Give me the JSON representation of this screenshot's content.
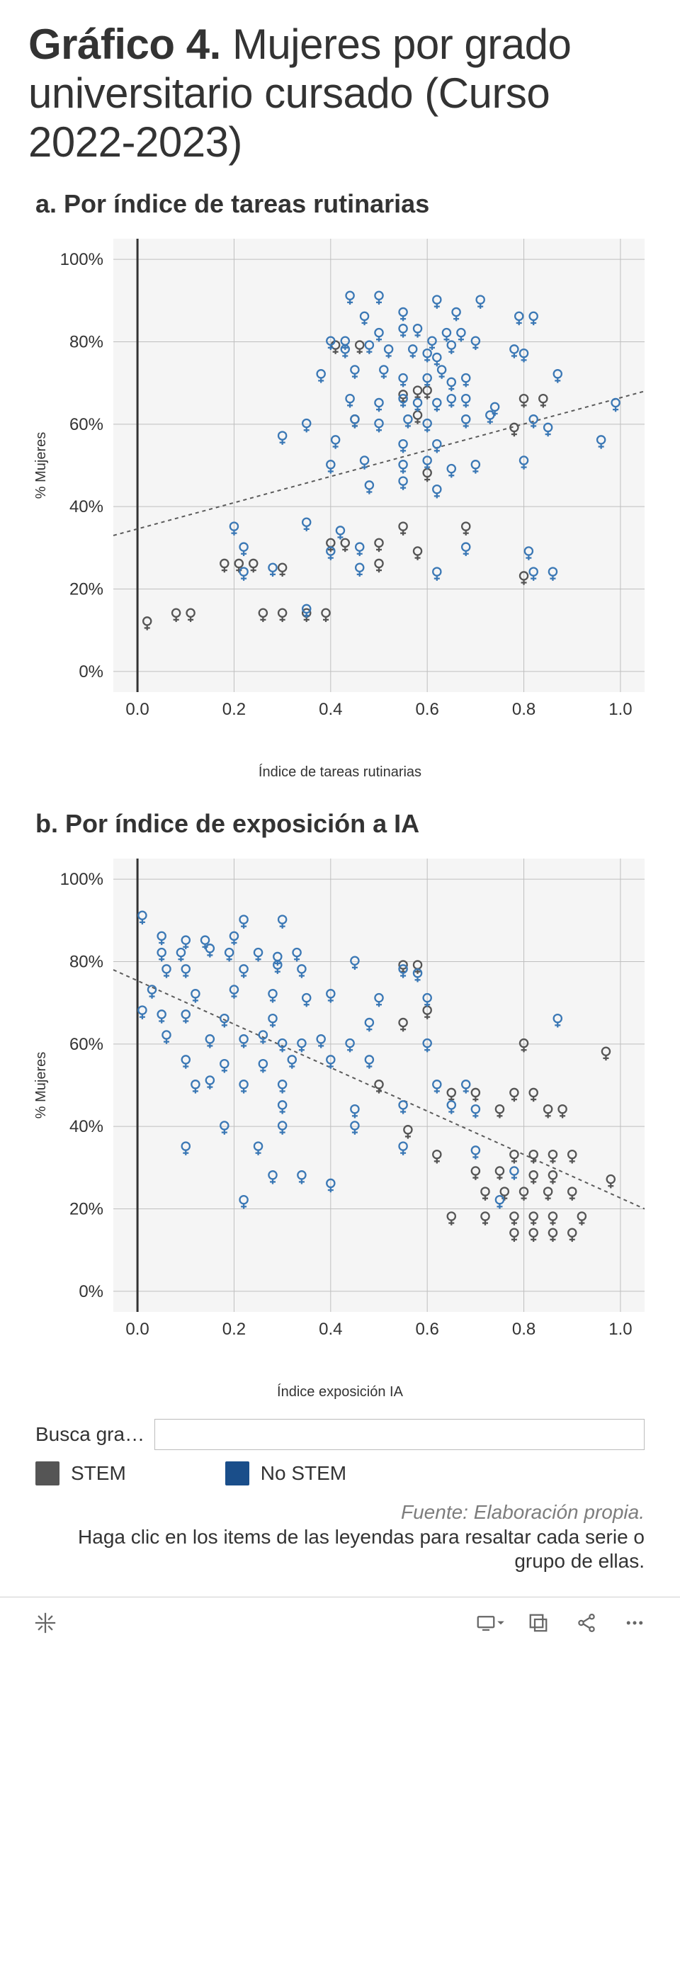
{
  "title_bold": "Gráfico 4.",
  "title_rest": " Mujeres por grado universitario cursado (Curso 2022-2023)",
  "chart_a": {
    "subtitle": "a. Por índice de tareas rutinarias",
    "type": "scatter",
    "ylabel": "% Mujeres",
    "xlabel": "Índice de tareas rutinarias",
    "xlim": [
      -0.05,
      1.05
    ],
    "ylim": [
      -0.05,
      1.05
    ],
    "xticks": [
      0.0,
      0.2,
      0.4,
      0.6,
      0.8,
      1.0
    ],
    "xtick_labels": [
      "0.0",
      "0.2",
      "0.4",
      "0.6",
      "0.8",
      "1.0"
    ],
    "yticks": [
      0.0,
      0.2,
      0.4,
      0.6,
      0.8,
      1.0
    ],
    "ytick_labels": [
      "0%",
      "20%",
      "40%",
      "60%",
      "80%",
      "100%"
    ],
    "plot_bg": "#f5f5f5",
    "grid_color": "#bfbfbf",
    "axis_zero_color": "#333333",
    "trend_color": "#5b5b5b",
    "trend": {
      "y_at_xmin": 0.33,
      "y_at_xmax": 0.68
    },
    "marker_radius": 8,
    "marker_stroke_width": 2.3,
    "tick_fontsize": 24,
    "label_fontsize": 20,
    "series": {
      "stem": {
        "color": "#555555"
      },
      "nostem": {
        "color": "#3b78b5"
      }
    },
    "points_nostem": [
      [
        0.44,
        0.91
      ],
      [
        0.5,
        0.91
      ],
      [
        0.62,
        0.9
      ],
      [
        0.71,
        0.9
      ],
      [
        0.47,
        0.86
      ],
      [
        0.55,
        0.87
      ],
      [
        0.66,
        0.87
      ],
      [
        0.79,
        0.86
      ],
      [
        0.82,
        0.86
      ],
      [
        0.4,
        0.8
      ],
      [
        0.43,
        0.8
      ],
      [
        0.5,
        0.82
      ],
      [
        0.55,
        0.83
      ],
      [
        0.58,
        0.83
      ],
      [
        0.61,
        0.8
      ],
      [
        0.64,
        0.82
      ],
      [
        0.67,
        0.82
      ],
      [
        0.7,
        0.8
      ],
      [
        0.43,
        0.78
      ],
      [
        0.48,
        0.79
      ],
      [
        0.52,
        0.78
      ],
      [
        0.57,
        0.78
      ],
      [
        0.6,
        0.77
      ],
      [
        0.62,
        0.76
      ],
      [
        0.65,
        0.79
      ],
      [
        0.78,
        0.78
      ],
      [
        0.8,
        0.77
      ],
      [
        0.38,
        0.72
      ],
      [
        0.45,
        0.73
      ],
      [
        0.51,
        0.73
      ],
      [
        0.55,
        0.71
      ],
      [
        0.6,
        0.71
      ],
      [
        0.63,
        0.73
      ],
      [
        0.65,
        0.7
      ],
      [
        0.68,
        0.71
      ],
      [
        0.87,
        0.72
      ],
      [
        0.44,
        0.66
      ],
      [
        0.5,
        0.65
      ],
      [
        0.55,
        0.66
      ],
      [
        0.58,
        0.65
      ],
      [
        0.62,
        0.65
      ],
      [
        0.65,
        0.66
      ],
      [
        0.68,
        0.66
      ],
      [
        0.74,
        0.64
      ],
      [
        0.99,
        0.65
      ],
      [
        0.35,
        0.6
      ],
      [
        0.45,
        0.61
      ],
      [
        0.5,
        0.6
      ],
      [
        0.56,
        0.61
      ],
      [
        0.6,
        0.6
      ],
      [
        0.68,
        0.61
      ],
      [
        0.73,
        0.62
      ],
      [
        0.82,
        0.61
      ],
      [
        0.85,
        0.59
      ],
      [
        0.3,
        0.57
      ],
      [
        0.41,
        0.56
      ],
      [
        0.55,
        0.55
      ],
      [
        0.62,
        0.55
      ],
      [
        0.96,
        0.56
      ],
      [
        0.4,
        0.5
      ],
      [
        0.47,
        0.51
      ],
      [
        0.55,
        0.5
      ],
      [
        0.6,
        0.51
      ],
      [
        0.65,
        0.49
      ],
      [
        0.7,
        0.5
      ],
      [
        0.8,
        0.51
      ],
      [
        0.48,
        0.45
      ],
      [
        0.55,
        0.46
      ],
      [
        0.62,
        0.44
      ],
      [
        0.2,
        0.35
      ],
      [
        0.35,
        0.36
      ],
      [
        0.42,
        0.34
      ],
      [
        0.22,
        0.3
      ],
      [
        0.4,
        0.29
      ],
      [
        0.46,
        0.3
      ],
      [
        0.68,
        0.3
      ],
      [
        0.81,
        0.29
      ],
      [
        0.22,
        0.24
      ],
      [
        0.28,
        0.25
      ],
      [
        0.46,
        0.25
      ],
      [
        0.62,
        0.24
      ],
      [
        0.82,
        0.24
      ],
      [
        0.86,
        0.24
      ],
      [
        0.35,
        0.15
      ]
    ],
    "points_stem": [
      [
        0.41,
        0.79
      ],
      [
        0.46,
        0.79
      ],
      [
        0.58,
        0.68
      ],
      [
        0.6,
        0.68
      ],
      [
        0.55,
        0.67
      ],
      [
        0.8,
        0.66
      ],
      [
        0.84,
        0.66
      ],
      [
        0.45,
        0.61
      ],
      [
        0.58,
        0.62
      ],
      [
        0.78,
        0.59
      ],
      [
        0.6,
        0.48
      ],
      [
        0.55,
        0.35
      ],
      [
        0.68,
        0.35
      ],
      [
        0.4,
        0.31
      ],
      [
        0.43,
        0.31
      ],
      [
        0.5,
        0.31
      ],
      [
        0.58,
        0.29
      ],
      [
        0.18,
        0.26
      ],
      [
        0.21,
        0.26
      ],
      [
        0.24,
        0.26
      ],
      [
        0.3,
        0.25
      ],
      [
        0.5,
        0.26
      ],
      [
        0.8,
        0.23
      ],
      [
        0.26,
        0.14
      ],
      [
        0.3,
        0.14
      ],
      [
        0.35,
        0.14
      ],
      [
        0.39,
        0.14
      ],
      [
        0.02,
        0.12
      ],
      [
        0.08,
        0.14
      ],
      [
        0.11,
        0.14
      ]
    ]
  },
  "chart_b": {
    "subtitle": "b. Por índice de exposición a IA",
    "type": "scatter",
    "ylabel": "% Mujeres",
    "xlabel": "Índice exposición IA",
    "xlim": [
      -0.05,
      1.05
    ],
    "ylim": [
      -0.05,
      1.05
    ],
    "xticks": [
      0.0,
      0.2,
      0.4,
      0.6,
      0.8,
      1.0
    ],
    "xtick_labels": [
      "0.0",
      "0.2",
      "0.4",
      "0.6",
      "0.8",
      "1.0"
    ],
    "yticks": [
      0.0,
      0.2,
      0.4,
      0.6,
      0.8,
      1.0
    ],
    "ytick_labels": [
      "0%",
      "20%",
      "40%",
      "60%",
      "80%",
      "100%"
    ],
    "plot_bg": "#f5f5f5",
    "grid_color": "#bfbfbf",
    "axis_zero_color": "#333333",
    "trend_color": "#5b5b5b",
    "trend": {
      "y_at_xmin": 0.78,
      "y_at_xmax": 0.2
    },
    "marker_radius": 8,
    "marker_stroke_width": 2.3,
    "tick_fontsize": 24,
    "label_fontsize": 20,
    "series": {
      "stem": {
        "color": "#555555"
      },
      "nostem": {
        "color": "#3b78b5"
      }
    },
    "points_nostem": [
      [
        0.01,
        0.91
      ],
      [
        0.22,
        0.9
      ],
      [
        0.3,
        0.9
      ],
      [
        0.05,
        0.86
      ],
      [
        0.1,
        0.85
      ],
      [
        0.14,
        0.85
      ],
      [
        0.2,
        0.86
      ],
      [
        0.05,
        0.82
      ],
      [
        0.09,
        0.82
      ],
      [
        0.15,
        0.83
      ],
      [
        0.19,
        0.82
      ],
      [
        0.25,
        0.82
      ],
      [
        0.29,
        0.81
      ],
      [
        0.33,
        0.82
      ],
      [
        0.45,
        0.8
      ],
      [
        0.06,
        0.78
      ],
      [
        0.1,
        0.78
      ],
      [
        0.22,
        0.78
      ],
      [
        0.29,
        0.79
      ],
      [
        0.34,
        0.78
      ],
      [
        0.55,
        0.78
      ],
      [
        0.58,
        0.77
      ],
      [
        0.03,
        0.73
      ],
      [
        0.12,
        0.72
      ],
      [
        0.2,
        0.73
      ],
      [
        0.28,
        0.72
      ],
      [
        0.35,
        0.71
      ],
      [
        0.4,
        0.72
      ],
      [
        0.5,
        0.71
      ],
      [
        0.6,
        0.71
      ],
      [
        0.01,
        0.68
      ],
      [
        0.05,
        0.67
      ],
      [
        0.1,
        0.67
      ],
      [
        0.18,
        0.66
      ],
      [
        0.28,
        0.66
      ],
      [
        0.48,
        0.65
      ],
      [
        0.87,
        0.66
      ],
      [
        0.06,
        0.62
      ],
      [
        0.15,
        0.61
      ],
      [
        0.22,
        0.61
      ],
      [
        0.26,
        0.62
      ],
      [
        0.3,
        0.6
      ],
      [
        0.34,
        0.6
      ],
      [
        0.38,
        0.61
      ],
      [
        0.44,
        0.6
      ],
      [
        0.6,
        0.6
      ],
      [
        0.1,
        0.56
      ],
      [
        0.18,
        0.55
      ],
      [
        0.26,
        0.55
      ],
      [
        0.32,
        0.56
      ],
      [
        0.4,
        0.56
      ],
      [
        0.48,
        0.56
      ],
      [
        0.12,
        0.5
      ],
      [
        0.15,
        0.51
      ],
      [
        0.22,
        0.5
      ],
      [
        0.3,
        0.5
      ],
      [
        0.62,
        0.5
      ],
      [
        0.68,
        0.5
      ],
      [
        0.3,
        0.45
      ],
      [
        0.45,
        0.44
      ],
      [
        0.55,
        0.45
      ],
      [
        0.65,
        0.45
      ],
      [
        0.7,
        0.44
      ],
      [
        0.18,
        0.4
      ],
      [
        0.3,
        0.4
      ],
      [
        0.45,
        0.4
      ],
      [
        0.1,
        0.35
      ],
      [
        0.25,
        0.35
      ],
      [
        0.55,
        0.35
      ],
      [
        0.7,
        0.34
      ],
      [
        0.28,
        0.28
      ],
      [
        0.34,
        0.28
      ],
      [
        0.78,
        0.29
      ],
      [
        0.22,
        0.22
      ],
      [
        0.4,
        0.26
      ],
      [
        0.75,
        0.22
      ]
    ],
    "points_stem": [
      [
        0.55,
        0.79
      ],
      [
        0.58,
        0.79
      ],
      [
        0.6,
        0.68
      ],
      [
        0.55,
        0.65
      ],
      [
        0.8,
        0.6
      ],
      [
        0.97,
        0.58
      ],
      [
        0.5,
        0.5
      ],
      [
        0.65,
        0.48
      ],
      [
        0.7,
        0.48
      ],
      [
        0.78,
        0.48
      ],
      [
        0.82,
        0.48
      ],
      [
        0.75,
        0.44
      ],
      [
        0.85,
        0.44
      ],
      [
        0.88,
        0.44
      ],
      [
        0.56,
        0.39
      ],
      [
        0.62,
        0.33
      ],
      [
        0.78,
        0.33
      ],
      [
        0.82,
        0.33
      ],
      [
        0.86,
        0.33
      ],
      [
        0.9,
        0.33
      ],
      [
        0.7,
        0.29
      ],
      [
        0.75,
        0.29
      ],
      [
        0.82,
        0.28
      ],
      [
        0.86,
        0.28
      ],
      [
        0.98,
        0.27
      ],
      [
        0.72,
        0.24
      ],
      [
        0.76,
        0.24
      ],
      [
        0.8,
        0.24
      ],
      [
        0.85,
        0.24
      ],
      [
        0.9,
        0.24
      ],
      [
        0.65,
        0.18
      ],
      [
        0.72,
        0.18
      ],
      [
        0.78,
        0.18
      ],
      [
        0.82,
        0.18
      ],
      [
        0.86,
        0.18
      ],
      [
        0.92,
        0.18
      ],
      [
        0.78,
        0.14
      ],
      [
        0.82,
        0.14
      ],
      [
        0.86,
        0.14
      ],
      [
        0.9,
        0.14
      ]
    ]
  },
  "search_label": "Busca gra…",
  "search_placeholder": "",
  "legend": {
    "stem": {
      "label": "STEM",
      "color": "#555555"
    },
    "nostem": {
      "label": "No STEM",
      "color": "#1a4e8a"
    }
  },
  "source": "Fuente: Elaboración propia.",
  "hint": "Haga clic en los items de las leyendas para resaltar cada serie o grupo de ellas.",
  "toolbar": {
    "icon_color": "#666666",
    "icons": [
      "tableau-logo",
      "download",
      "fullscreen",
      "share",
      "more"
    ]
  }
}
